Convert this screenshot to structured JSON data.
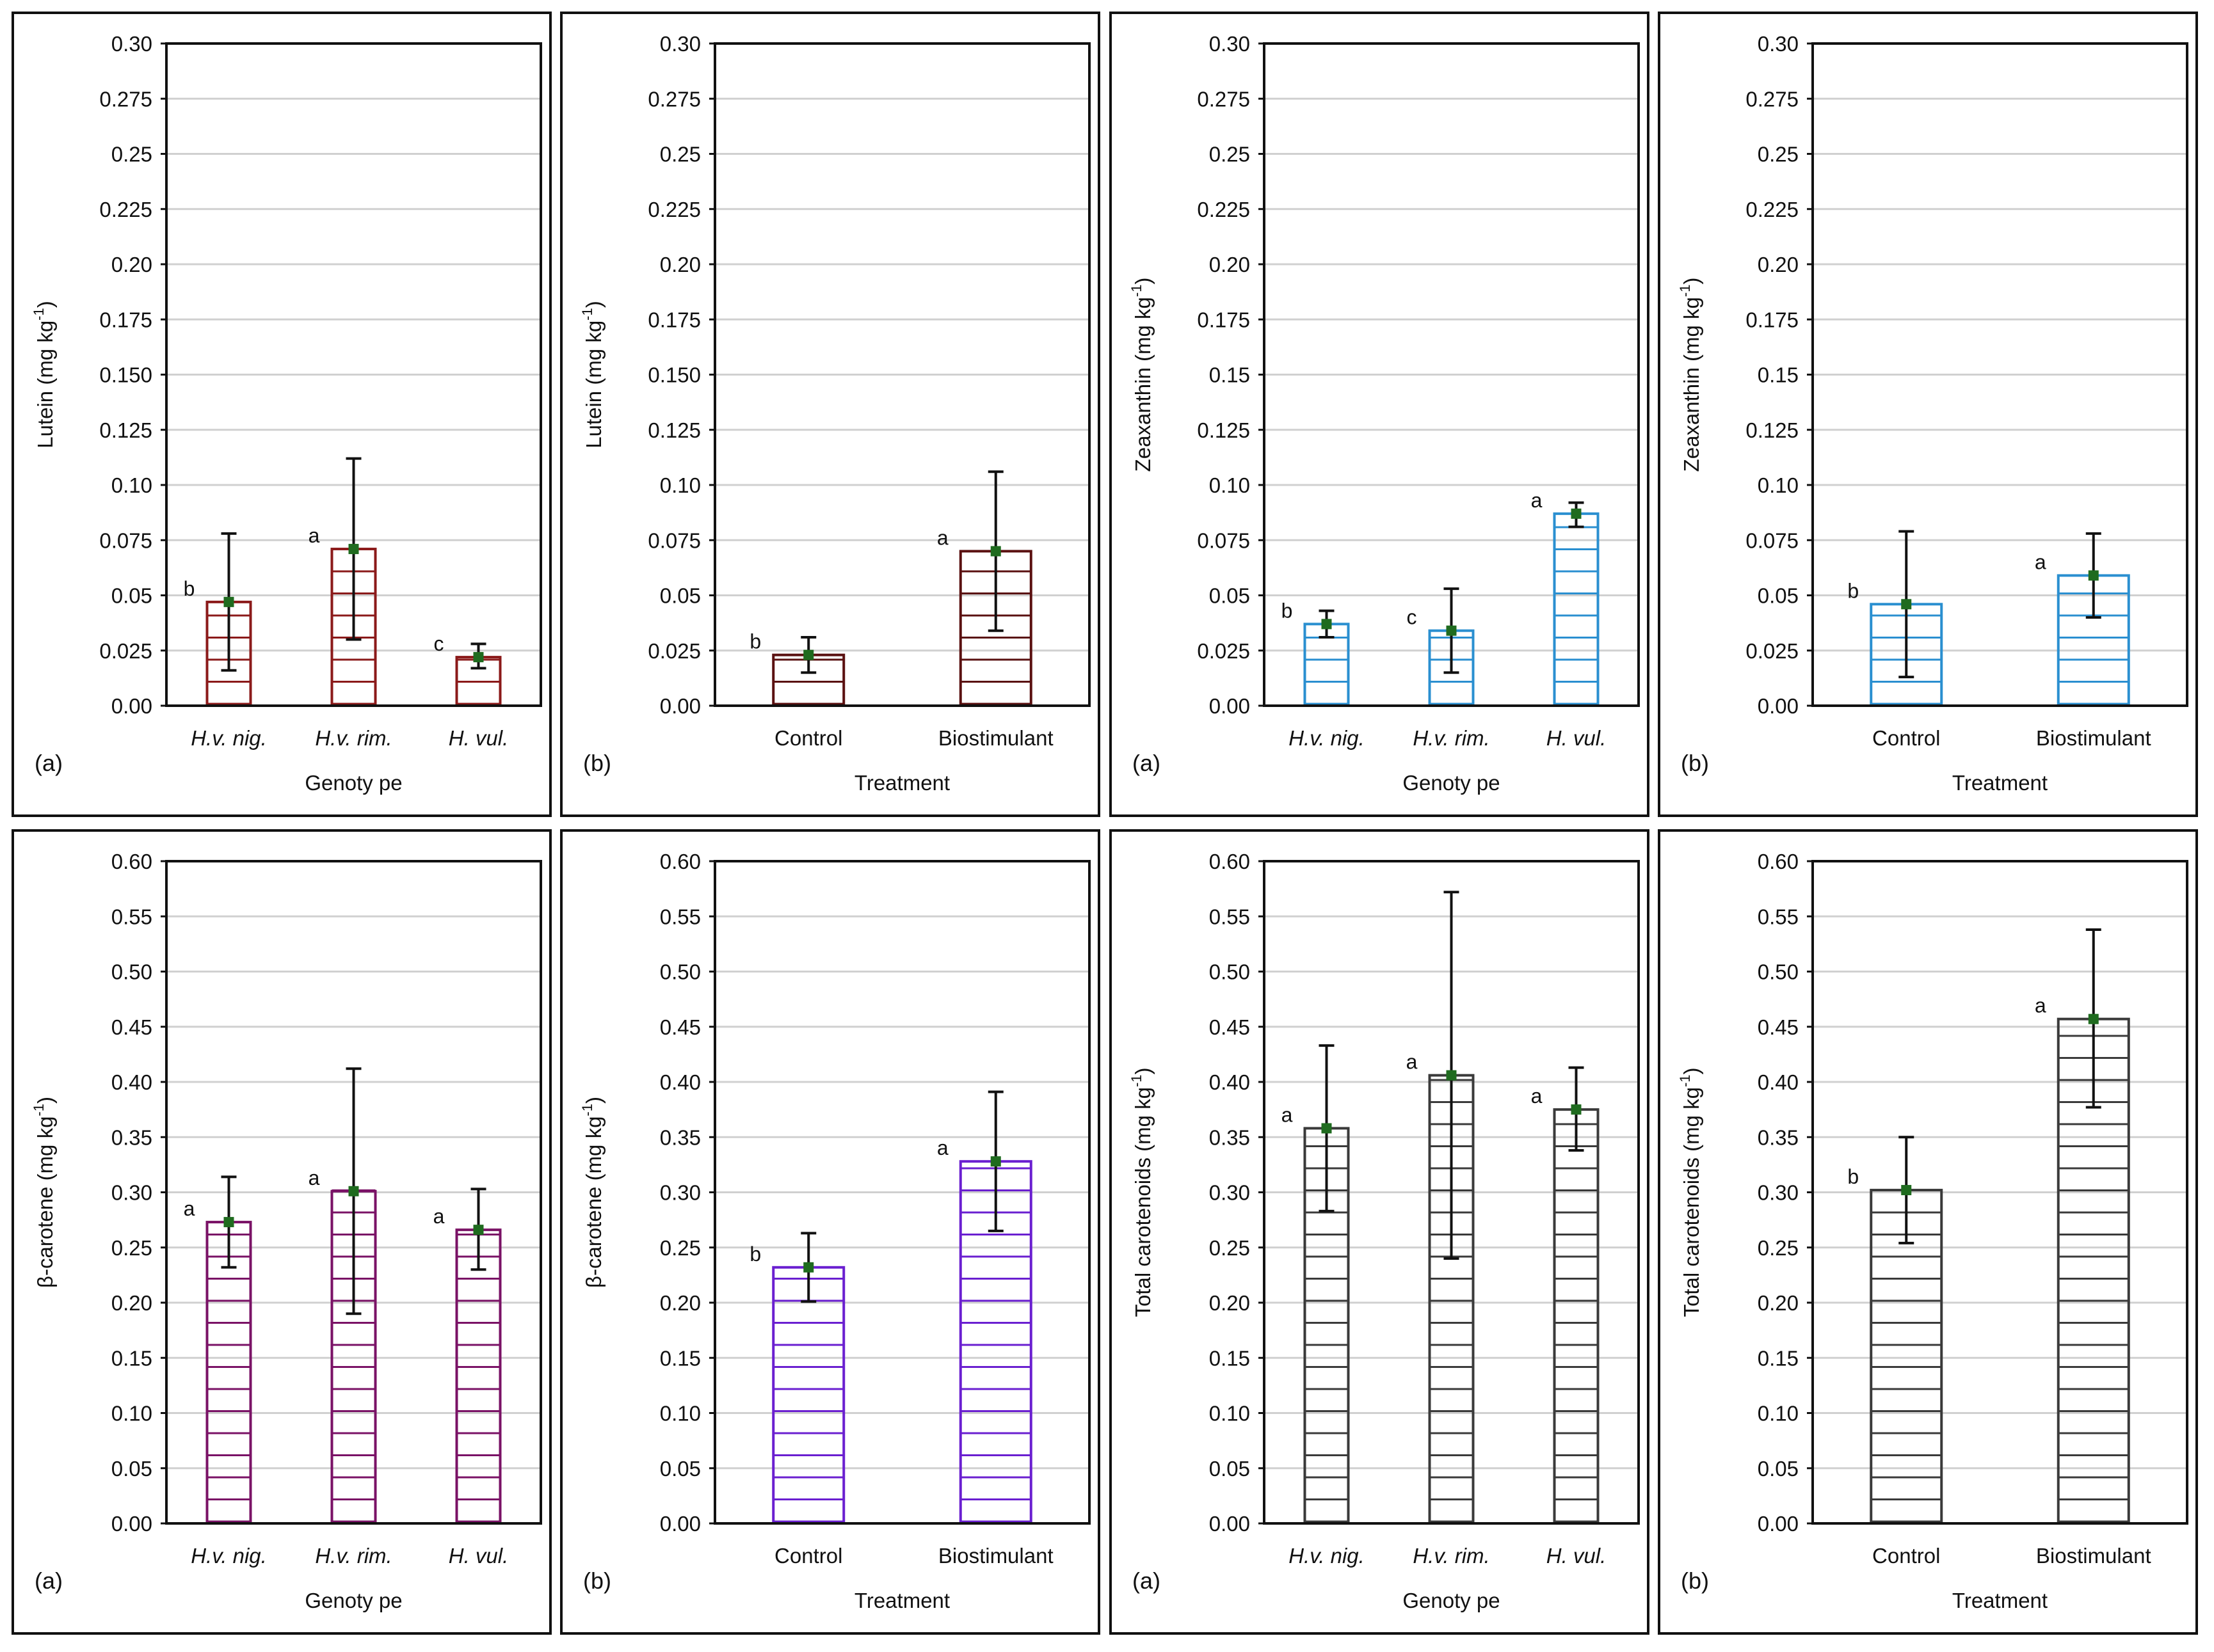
{
  "chart_data": [
    {
      "type": "bar",
      "panel_label": "(a)",
      "xlabel": "Genoty pe",
      "ylabel_main": "Lutein (mg kg",
      "ylabel_sup": "-1",
      "ylabel_end": ")",
      "categories": [
        "H.v. nig.",
        "H.v. rim.",
        "H. vul."
      ],
      "italic_categories": true,
      "values": [
        0.047,
        0.071,
        0.022
      ],
      "error_low": [
        0.016,
        0.03,
        0.017
      ],
      "error_high": [
        0.078,
        0.112,
        0.028
      ],
      "letters": [
        "b",
        "a",
        "c"
      ],
      "ylim": [
        0,
        0.3
      ],
      "yticks": [
        "0.00",
        "0.025",
        "0.05",
        "0.075",
        "0.10",
        "0.125",
        "0.150",
        "0.175",
        "0.20",
        "0.225",
        "0.25",
        "0.275",
        "0.30"
      ],
      "bar_color": "#8b1a1a",
      "grid": true
    },
    {
      "type": "bar",
      "panel_label": "(b)",
      "xlabel": "Treatment",
      "ylabel_main": "Lutein (mg kg",
      "ylabel_sup": "-1",
      "ylabel_end": ")",
      "categories": [
        "Control",
        "Biostimulant"
      ],
      "italic_categories": false,
      "values": [
        0.023,
        0.07
      ],
      "error_low": [
        0.015,
        0.034
      ],
      "error_high": [
        0.031,
        0.106
      ],
      "letters": [
        "b",
        "a"
      ],
      "ylim": [
        0,
        0.3
      ],
      "yticks": [
        "0.00",
        "0.025",
        "0.05",
        "0.075",
        "0.10",
        "0.125",
        "0.150",
        "0.175",
        "0.20",
        "0.225",
        "0.25",
        "0.275",
        "0.30"
      ],
      "bar_color": "#5a1010",
      "grid": true
    },
    {
      "type": "bar",
      "panel_label": "(a)",
      "xlabel": "Genoty pe",
      "ylabel_main": "Zeaxanthin (mg kg",
      "ylabel_sup": "-1",
      "ylabel_end": ")",
      "categories": [
        "H.v. nig.",
        "H.v. rim.",
        "H. vul."
      ],
      "italic_categories": true,
      "values": [
        0.037,
        0.034,
        0.087
      ],
      "error_low": [
        0.031,
        0.015,
        0.081
      ],
      "error_high": [
        0.043,
        0.053,
        0.092
      ],
      "letters": [
        "b",
        "c",
        "a"
      ],
      "ylim": [
        0,
        0.3
      ],
      "yticks": [
        "0.00",
        "0.025",
        "0.05",
        "0.075",
        "0.10",
        "0.125",
        "0.15",
        "0.175",
        "0.20",
        "0.225",
        "0.25",
        "0.275",
        "0.30"
      ],
      "bar_color": "#2a8fd0",
      "grid": true
    },
    {
      "type": "bar",
      "panel_label": "(b)",
      "xlabel": "Treatment",
      "ylabel_main": "Zeaxanthin (mg kg",
      "ylabel_sup": "-1",
      "ylabel_end": ")",
      "categories": [
        "Control",
        "Biostimulant"
      ],
      "italic_categories": false,
      "values": [
        0.046,
        0.059
      ],
      "error_low": [
        0.013,
        0.04
      ],
      "error_high": [
        0.079,
        0.078
      ],
      "letters": [
        "b",
        "a"
      ],
      "ylim": [
        0,
        0.3
      ],
      "yticks": [
        "0.00",
        "0.025",
        "0.05",
        "0.075",
        "0.10",
        "0.125",
        "0.15",
        "0.175",
        "0.20",
        "0.225",
        "0.25",
        "0.275",
        "0.30"
      ],
      "bar_color": "#2a8fd0",
      "grid": true
    },
    {
      "type": "bar",
      "panel_label": "(a)",
      "xlabel": "Genoty pe",
      "ylabel_main": "β-carotene (mg kg",
      "ylabel_sup": "-1",
      "ylabel_end": ")",
      "categories": [
        "H.v. nig.",
        "H.v. rim.",
        "H. vul."
      ],
      "italic_categories": true,
      "values": [
        0.273,
        0.301,
        0.266
      ],
      "error_low": [
        0.232,
        0.19,
        0.23
      ],
      "error_high": [
        0.314,
        0.412,
        0.303
      ],
      "letters": [
        "a",
        "a",
        "a"
      ],
      "ylim": [
        0,
        0.6
      ],
      "yticks": [
        "0.00",
        "0.05",
        "0.10",
        "0.15",
        "0.20",
        "0.25",
        "0.30",
        "0.35",
        "0.40",
        "0.45",
        "0.50",
        "0.55",
        "0.60"
      ],
      "bar_color": "#7a1266",
      "grid": true
    },
    {
      "type": "bar",
      "panel_label": "(b)",
      "xlabel": "Treatment",
      "ylabel_main": "β-carotene (mg kg",
      "ylabel_sup": "-1",
      "ylabel_end": ")",
      "categories": [
        "Control",
        "Biostimulant"
      ],
      "italic_categories": false,
      "values": [
        0.232,
        0.328
      ],
      "error_low": [
        0.201,
        0.265
      ],
      "error_high": [
        0.263,
        0.391
      ],
      "letters": [
        "b",
        "a"
      ],
      "ylim": [
        0,
        0.6
      ],
      "yticks": [
        "0.00",
        "0.05",
        "0.10",
        "0.15",
        "0.20",
        "0.25",
        "0.30",
        "0.35",
        "0.40",
        "0.45",
        "0.50",
        "0.55",
        "0.60"
      ],
      "bar_color": "#6a1fd0",
      "grid": true
    },
    {
      "type": "bar",
      "panel_label": "(a)",
      "xlabel": "Genoty pe",
      "ylabel_main": "Total carotenoids (mg kg",
      "ylabel_sup": "-1",
      "ylabel_end": ")",
      "categories": [
        "H.v. nig.",
        "H.v. rim.",
        "H. vul."
      ],
      "italic_categories": true,
      "values": [
        0.358,
        0.406,
        0.375
      ],
      "error_low": [
        0.283,
        0.24,
        0.338
      ],
      "error_high": [
        0.433,
        0.572,
        0.413
      ],
      "letters": [
        "a",
        "a",
        "a"
      ],
      "ylim": [
        0,
        0.6
      ],
      "yticks": [
        "0.00",
        "0.05",
        "0.10",
        "0.15",
        "0.20",
        "0.25",
        "0.30",
        "0.35",
        "0.40",
        "0.45",
        "0.50",
        "0.55",
        "0.60"
      ],
      "bar_color": "#3a3a3a",
      "grid": true
    },
    {
      "type": "bar",
      "panel_label": "(b)",
      "xlabel": "Treatment",
      "ylabel_main": "Total carotenoids (mg kg",
      "ylabel_sup": "-1",
      "ylabel_end": ")",
      "categories": [
        "Control",
        "Biostimulant"
      ],
      "italic_categories": false,
      "values": [
        0.302,
        0.457
      ],
      "error_low": [
        0.254,
        0.377
      ],
      "error_high": [
        0.35,
        0.538
      ],
      "letters": [
        "b",
        "a"
      ],
      "ylim": [
        0,
        0.6
      ],
      "yticks": [
        "0.00",
        "0.05",
        "0.10",
        "0.15",
        "0.20",
        "0.25",
        "0.30",
        "0.35",
        "0.40",
        "0.45",
        "0.50",
        "0.55",
        "0.60"
      ],
      "bar_color": "#3a3a3a",
      "grid": true
    }
  ],
  "colors": {
    "mean_marker": "#1f6b1f",
    "grid": "#d0d0d0",
    "frame": "#111111"
  }
}
